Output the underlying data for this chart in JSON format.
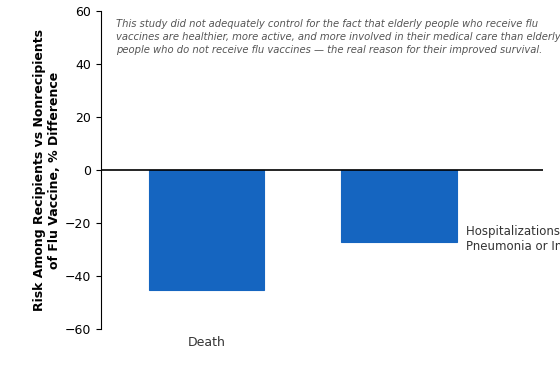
{
  "categories": [
    "Death",
    ""
  ],
  "values": [
    -45,
    -27
  ],
  "bar_color": "#1565C0",
  "bar_width": 0.6,
  "ylim": [
    -60,
    60
  ],
  "yticks": [
    -60,
    -40,
    -20,
    0,
    20,
    40,
    60
  ],
  "ylabel": "Risk Among Recipients vs Nonrecipients\nof Flu Vaccine, % Difference",
  "annotation_line1": "This study did not adequately control for the fact that elderly people who receive flu",
  "annotation_line2": "vaccines are healthier, more active, and more involved in their medical care than elderly",
  "annotation_line3": "people who do not receive flu vaccines — the real reason for their improved survival.",
  "annotation_fontsize": 7.2,
  "annotation_style": "italic",
  "background_color": "#ffffff",
  "label_fontsize": 9,
  "ylabel_fontsize": 9,
  "tick_fontsize": 9,
  "bar_edge_color": "#1565C0",
  "hosp_label": "Hospitalizations for\nPneumonia or Influenza",
  "death_label": "Death"
}
